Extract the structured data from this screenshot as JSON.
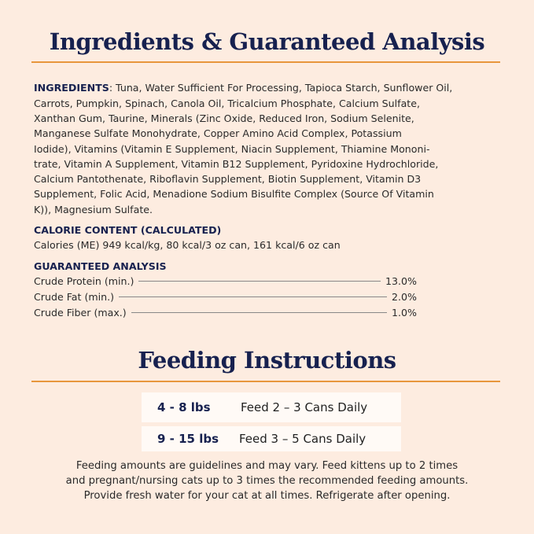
{
  "ingredients_section": {
    "title": "Ingredients & Guaranteed Analysis",
    "ingredients_label": "INGREDIENTS",
    "ingredients_lines": [
      ": Tuna, Water Sufficient For Processing, Tapioca Starch, Sunflower Oil,",
      "Carrots, Pumpkin, Spinach, Canola Oil, Tricalcium Phosphate, Calcium Sulfate,",
      "Xanthan Gum, Taurine, Minerals (Zinc Oxide, Reduced Iron, Sodium Selenite,",
      "Manganese Sulfate Monohydrate, Copper Amino Acid Complex, Potassium",
      "Iodide), Vitamins (Vitamin E Supplement, Niacin Supplement, Thiamine Mononi-",
      "trate, Vitamin A Supplement, Vitamin B12 Supplement, Pyridoxine Hydrochloride,",
      "Calcium Pantothenate, Riboflavin Supplement, Biotin Supplement, Vitamin D3",
      "Supplement, Folic Acid, Menadione Sodium Bisulfite Complex (Source Of Vitamin",
      "K)), Magnesium Sulfate."
    ],
    "calorie_label": "CALORIE CONTENT (CALCULATED)",
    "calorie_text": "Calories (ME) 949 kcal/kg, 80 kcal/3 oz can, 161 kcal/6 oz can",
    "analysis_label": "GUARANTEED ANALYSIS",
    "analysis": [
      {
        "name": "Crude Protein (min.)",
        "value": "13.0%"
      },
      {
        "name": "Crude Fat (min.)",
        "value": "2.0%"
      },
      {
        "name": "Crude Fiber (max.)",
        "value": "1.0%"
      }
    ]
  },
  "feeding_section": {
    "title": "Feeding Instructions",
    "rows": [
      {
        "weight": "4 - 8 lbs",
        "amount": "Feed 2 – 3 Cans Daily"
      },
      {
        "weight": "9 - 15 lbs",
        "amount": "Feed 3 –  5 Cans Daily"
      }
    ],
    "notes": [
      "Feeding amounts are guidelines and may vary. Feed kittens up to 2 times",
      "and pregnant/nursing cats up to 3 times the recommended feeding amounts.",
      "Provide fresh water for your cat at all times. Refrigerate after opening."
    ]
  },
  "colors": {
    "navy": "#17214f",
    "accent_orange": "#e8963c",
    "background": "#fdece0"
  }
}
